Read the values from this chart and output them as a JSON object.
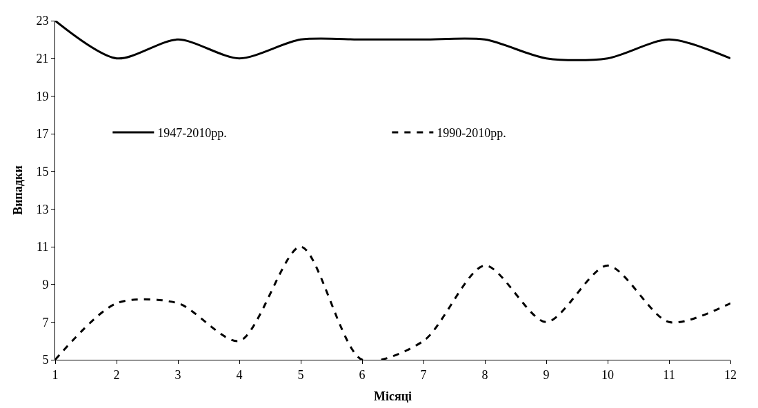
{
  "chart_data": {
    "type": "line",
    "xlabel": "Місяці",
    "ylabel": "Випадки",
    "x": [
      1,
      2,
      3,
      4,
      5,
      6,
      7,
      8,
      9,
      10,
      11,
      12
    ],
    "series": [
      {
        "name": "1947-2010рр.",
        "color": "#000000",
        "line_style": "solid",
        "values": [
          23,
          21,
          22,
          21,
          22,
          22,
          22,
          22,
          21,
          21,
          22,
          21
        ]
      },
      {
        "name": "1990-2010рр.",
        "color": "#000000",
        "line_style": "dashed",
        "values": [
          5,
          8,
          8,
          6,
          11,
          5,
          6,
          10,
          7,
          10,
          7,
          8
        ]
      }
    ],
    "xlim": [
      1,
      12
    ],
    "xticks": [
      1,
      2,
      3,
      4,
      5,
      6,
      7,
      8,
      9,
      10,
      11,
      12
    ],
    "ylim": [
      5,
      23
    ],
    "yticks": [
      5,
      7,
      9,
      11,
      13,
      15,
      17,
      19,
      21,
      23
    ],
    "grid": false,
    "legend": "top",
    "marker": "none"
  }
}
